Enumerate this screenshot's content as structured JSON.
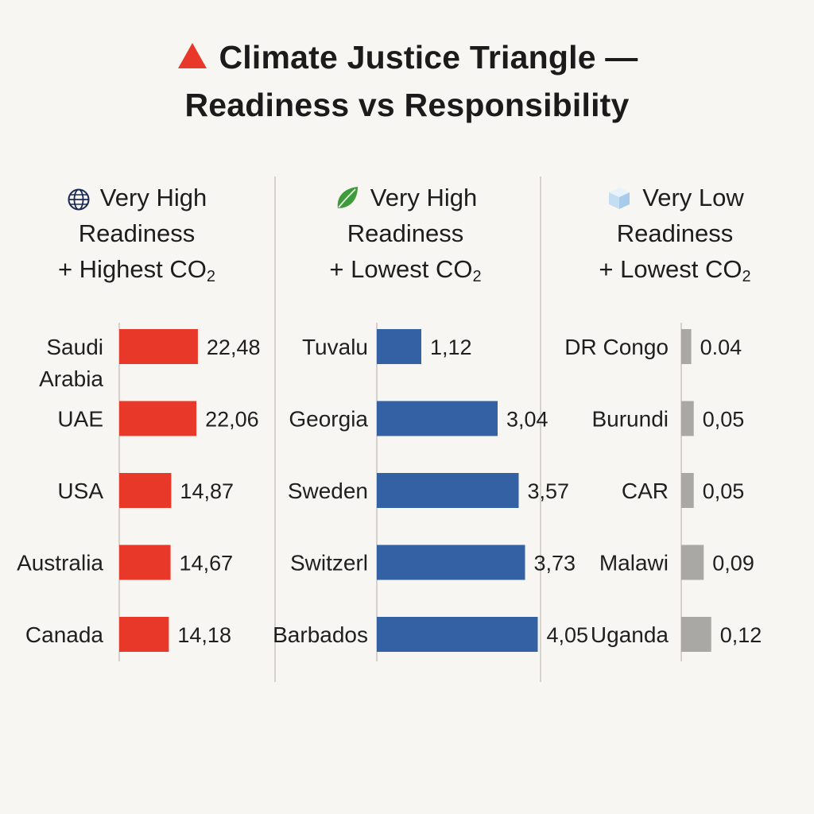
{
  "title": {
    "line1": "Climate Justice Triangle —",
    "line2": "Readiness vs Responsibility"
  },
  "colors": {
    "title_icon": "#e8382a",
    "background": "#f8f6f2"
  },
  "chart_data": [
    {
      "type": "bar",
      "orientation": "horizontal",
      "icon": "globe-icon",
      "header": {
        "line1": "Very High",
        "line2": "Readiness",
        "line3": "+ Highest CO",
        "subscript": "2"
      },
      "color": "#e8382a",
      "categories": [
        "Saudi Arabia",
        "UAE",
        "USA",
        "Australia",
        "Canada"
      ],
      "values": [
        22.48,
        22.06,
        14.87,
        14.67,
        14.18
      ],
      "value_labels": [
        "22,48",
        "22,06",
        "14,87",
        "14,67",
        "14,18"
      ],
      "xlim": [
        0,
        50
      ]
    },
    {
      "type": "bar",
      "orientation": "horizontal",
      "icon": "leaf-icon",
      "header": {
        "line1": "Very High",
        "line2": "Readiness",
        "line3": "+ Lowest CO",
        "subscript": "2"
      },
      "color": "#3461a3",
      "categories": [
        "Tuvalu",
        "Georgia",
        "Sweden",
        "Switzerl",
        "Barbados"
      ],
      "values": [
        1.12,
        3.04,
        3.57,
        3.73,
        4.05
      ],
      "value_labels": [
        "1,12",
        "3,04",
        "3,57",
        "3,73",
        "4,05"
      ],
      "xlim": [
        0,
        4.6
      ]
    },
    {
      "type": "bar",
      "orientation": "horizontal",
      "icon": "ice-cube-icon",
      "header": {
        "line1": "Very Low",
        "line2": "Readiness",
        "line3": "+ Lowest CO",
        "subscript": "2"
      },
      "color": "#a9a8a4",
      "categories": [
        "DR Congo",
        "Burundi",
        "CAR",
        "Malawi",
        "Uganda"
      ],
      "values": [
        0.04,
        0.05,
        0.05,
        0.09,
        0.12
      ],
      "value_labels": [
        "0.04",
        "0,05",
        "0,05",
        "0,09",
        "0,12"
      ],
      "xlim": [
        0,
        0.7
      ]
    }
  ]
}
